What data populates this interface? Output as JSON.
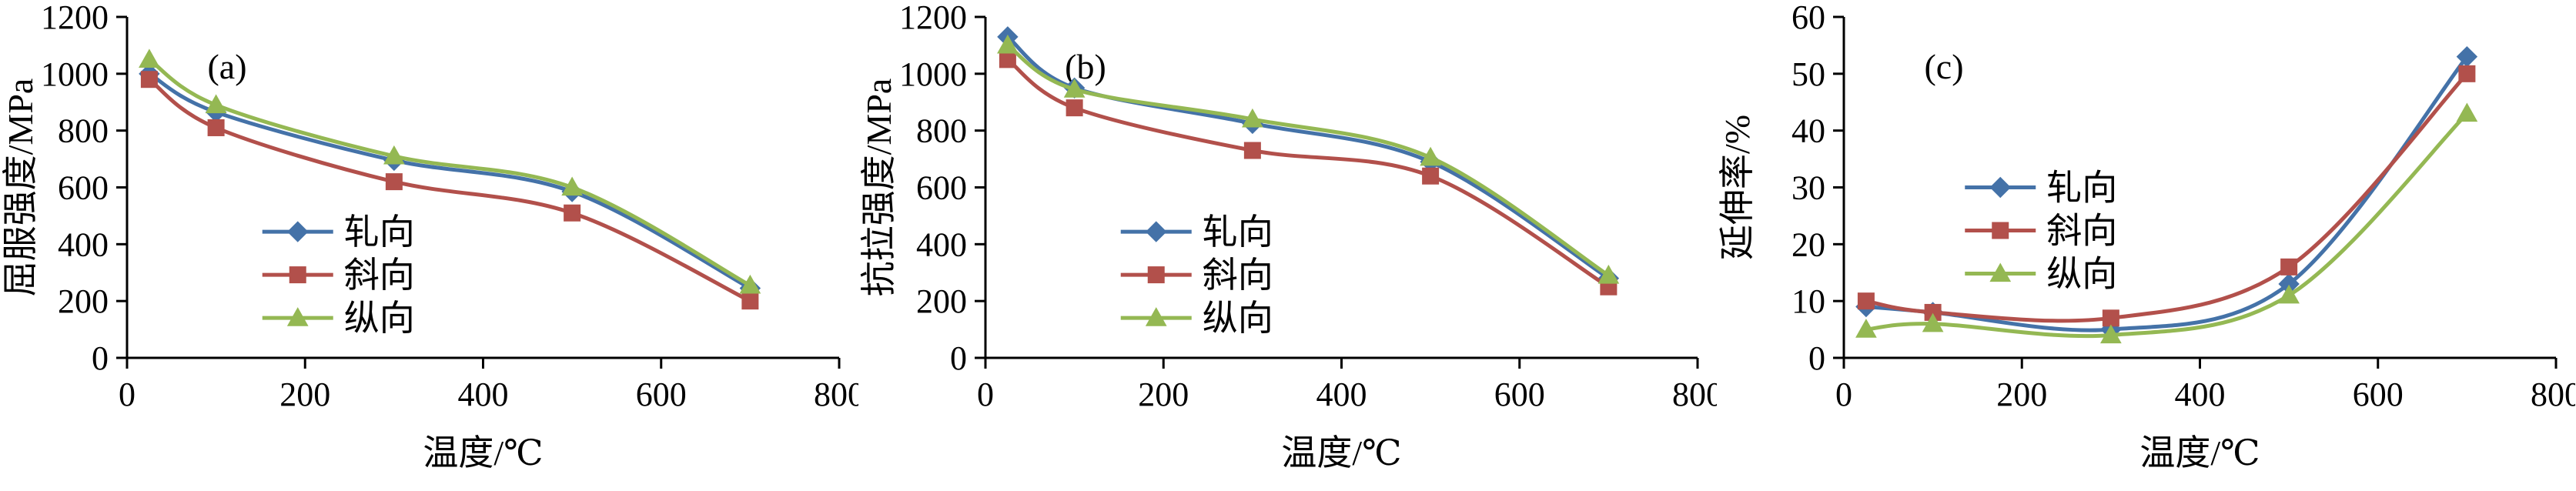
{
  "figure": {
    "background": "#ffffff",
    "axis_color": "#000000"
  },
  "chart_data": [
    {
      "type": "line",
      "panel_label": "(a)",
      "title": "",
      "xlabel": "温度/℃",
      "ylabel": "屈服强度/MPa",
      "xlim": [
        0,
        800
      ],
      "ylim": [
        0,
        1200
      ],
      "xticks": [
        0,
        200,
        400,
        600,
        800
      ],
      "yticks": [
        0,
        200,
        400,
        600,
        800,
        1000,
        1200
      ],
      "grid": false,
      "legend_position": "inside-lower-left",
      "x": [
        25,
        100,
        300,
        500,
        700
      ],
      "series": [
        {
          "name": "轧向",
          "color": "#4472A8",
          "marker": "diamond",
          "values": [
            1000,
            865,
            695,
            585,
            245
          ]
        },
        {
          "name": "斜向",
          "color": "#B2504B",
          "marker": "square",
          "values": [
            980,
            810,
            620,
            510,
            200
          ]
        },
        {
          "name": "纵向",
          "color": "#94B853",
          "marker": "triangle",
          "values": [
            1050,
            890,
            710,
            600,
            255
          ]
        }
      ],
      "legend": {
        "fx": 0.19,
        "fy": 0.63
      }
    },
    {
      "type": "line",
      "panel_label": "(b)",
      "title": "",
      "xlabel": "温度/℃",
      "ylabel": "抗拉强度/MPa",
      "xlim": [
        0,
        800
      ],
      "ylim": [
        0,
        1200
      ],
      "xticks": [
        0,
        200,
        400,
        600,
        800
      ],
      "yticks": [
        0,
        200,
        400,
        600,
        800,
        1000,
        1200
      ],
      "grid": false,
      "legend_position": "inside-lower-left",
      "x": [
        25,
        100,
        300,
        500,
        700
      ],
      "series": [
        {
          "name": "轧向",
          "color": "#4472A8",
          "marker": "diamond",
          "values": [
            1130,
            950,
            825,
            690,
            280
          ]
        },
        {
          "name": "斜向",
          "color": "#B2504B",
          "marker": "square",
          "values": [
            1050,
            880,
            730,
            640,
            250
          ]
        },
        {
          "name": "纵向",
          "color": "#94B853",
          "marker": "triangle",
          "values": [
            1100,
            945,
            840,
            705,
            290
          ]
        }
      ],
      "legend": {
        "fx": 0.19,
        "fy": 0.63
      }
    },
    {
      "type": "line",
      "panel_label": "(c)",
      "title": "",
      "xlabel": "温度/℃",
      "ylabel": "延伸率/%",
      "xlim": [
        0,
        800
      ],
      "ylim": [
        0,
        60
      ],
      "xticks": [
        0,
        200,
        400,
        600,
        800
      ],
      "yticks": [
        0,
        10,
        20,
        30,
        40,
        50,
        60
      ],
      "grid": false,
      "legend_position": "inside-middle-left",
      "x": [
        25,
        100,
        300,
        500,
        700
      ],
      "series": [
        {
          "name": "轧向",
          "color": "#4472A8",
          "marker": "diamond",
          "values": [
            9,
            8,
            5,
            13,
            53
          ]
        },
        {
          "name": "斜向",
          "color": "#B2504B",
          "marker": "square",
          "values": [
            10,
            8,
            7,
            16,
            50
          ]
        },
        {
          "name": "纵向",
          "color": "#94B853",
          "marker": "triangle",
          "values": [
            5,
            6,
            4,
            11,
            43
          ]
        }
      ],
      "legend": {
        "fx": 0.17,
        "fy": 0.5
      }
    }
  ]
}
